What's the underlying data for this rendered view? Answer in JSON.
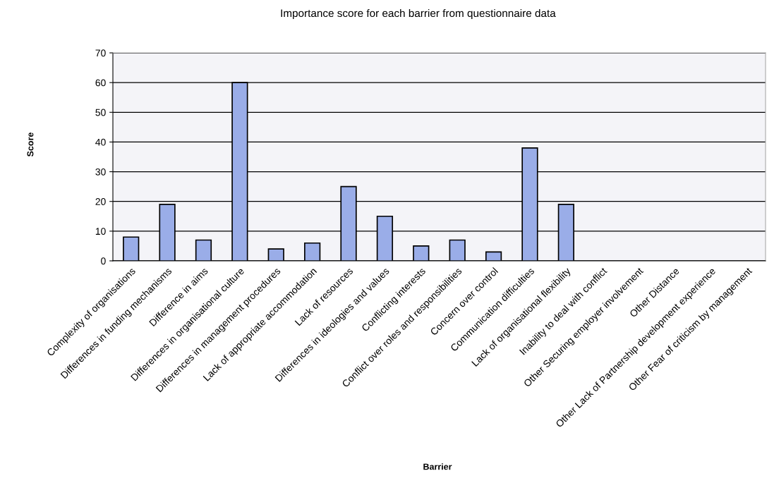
{
  "chart_data": {
    "type": "bar",
    "title": "Importance score for each barrier from questionnaire data",
    "xlabel": "Barrier",
    "ylabel": "Score",
    "categories": [
      "Complexity of organisations",
      "Differences in funding mechanisms",
      "Difference in aims",
      "Differences in organisational culture",
      "Differences in management procedures",
      "Lack of appropriate accommodation",
      "Lack of resources",
      "Differences in ideologies and values",
      "Conflicting interests",
      "Conflict over roles and responsibilities",
      "Concern over control",
      "Communication difficulties",
      "Lack of organisational flexibility",
      "Inability to deal with conflict",
      "Other Securing employer involvement",
      "Other Distance",
      "Other Lack of Partnership development experience",
      "Other Fear of criticism by management"
    ],
    "values": [
      8,
      19,
      7,
      60,
      4,
      6,
      25,
      15,
      5,
      7,
      3,
      38,
      19,
      0,
      0,
      0,
      0,
      0
    ],
    "color": "#9aade8",
    "ylim": [
      0,
      70
    ],
    "yticks": [
      0,
      10,
      20,
      30,
      40,
      50,
      60,
      70
    ],
    "grid": "y",
    "legend": false
  }
}
